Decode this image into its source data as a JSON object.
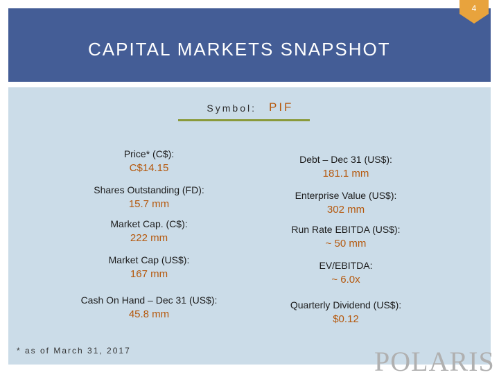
{
  "page_number": "4",
  "title": "CAPITAL MARKETS SNAPSHOT",
  "symbol": {
    "label": "Symbol:",
    "value": "PIF"
  },
  "left_metrics": [
    {
      "label": "Price* (C$):",
      "value": "C$14.15"
    },
    {
      "label": "Shares Outstanding (FD):",
      "value": "15.7 mm"
    },
    {
      "label": "Market Cap. (C$):",
      "value": "222 mm"
    },
    {
      "label": "Market Cap (US$):",
      "value": "167 mm"
    },
    {
      "label": "Cash On Hand – Dec 31 (US$):",
      "value": "45.8 mm"
    }
  ],
  "right_metrics": [
    {
      "label": "Debt – Dec 31 (US$):",
      "value": "181.1 mm"
    },
    {
      "label": "Enterprise Value (US$):",
      "value": "302 mm"
    },
    {
      "label": "Run Rate EBITDA (US$):",
      "value": "~ 50 mm"
    },
    {
      "label": "EV/EBITDA:",
      "value": "~ 6.0x"
    },
    {
      "label": "Quarterly Dividend (US$):",
      "value": "$0.12"
    }
  ],
  "footnote": "* as of March 31, 2017",
  "logo_text": "POLARIS",
  "colors": {
    "header": "#445d96",
    "panel": "#cbdce8",
    "accent_value": "#b5580c",
    "underline": "#8a9a3a",
    "badge": "#e8a33d"
  }
}
